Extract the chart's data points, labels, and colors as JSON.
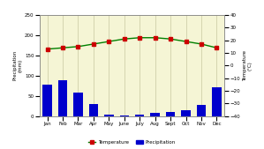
{
  "months": [
    "Jan",
    "Feb",
    "Mar",
    "Apr",
    "May",
    "June",
    "July",
    "Aug",
    "Sept",
    "Oct",
    "Nov",
    "Dec"
  ],
  "precipitation": [
    78,
    88,
    58,
    30,
    5,
    2,
    3,
    8,
    10,
    15,
    28,
    72
  ],
  "temperature": [
    13,
    14,
    15,
    17,
    19,
    21,
    22,
    22,
    21,
    19,
    17,
    14
  ],
  "precip_ylim": [
    0,
    250
  ],
  "temp_ylim": [
    -40,
    40
  ],
  "precip_yticks": [
    0,
    50,
    100,
    150,
    200,
    250
  ],
  "temp_yticks": [
    -40,
    -30,
    -20,
    -10,
    0,
    10,
    20,
    30,
    40
  ],
  "bar_color": "#0000cc",
  "line_color": "#008000",
  "dot_color": "#cc0000",
  "bg_color": "#f5f5d5",
  "outer_bg": "#ffffff",
  "ylabel_left": "Precipitation\n(mm)",
  "ylabel_right": "Temperature\n(°C)",
  "legend_temp": "Temperature",
  "legend_precip": "Precipitation",
  "grid_color": "#c8c8a0",
  "figsize": [
    2.99,
    1.69
  ],
  "dpi": 100
}
